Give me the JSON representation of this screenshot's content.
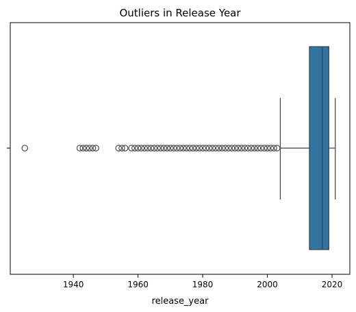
{
  "chart_data": {
    "type": "boxplot",
    "orientation": "horizontal",
    "title": "Outliers in Release Year",
    "xlabel": "release_year",
    "ylabel": "",
    "xlim": [
      1920.5,
      2025.5
    ],
    "x_ticks": [
      1940,
      1960,
      1980,
      2000,
      2020
    ],
    "x_tick_labels": [
      "1940",
      "1960",
      "1980",
      "2000",
      "2020"
    ],
    "grid": false,
    "legend": "none",
    "box": {
      "whisker_low": 2004,
      "q1": 2013,
      "median": 2017,
      "q3": 2019,
      "whisker_high": 2021
    },
    "outliers": [
      1925,
      1942,
      1943,
      1944,
      1945,
      1946,
      1947,
      1954,
      1955,
      1956,
      1958,
      1959,
      1960,
      1961,
      1962,
      1963,
      1964,
      1965,
      1966,
      1967,
      1968,
      1969,
      1970,
      1971,
      1972,
      1973,
      1974,
      1975,
      1976,
      1977,
      1978,
      1979,
      1980,
      1981,
      1982,
      1983,
      1984,
      1985,
      1986,
      1987,
      1988,
      1989,
      1990,
      1991,
      1992,
      1993,
      1994,
      1995,
      1996,
      1997,
      1998,
      1999,
      2000,
      2001,
      2002,
      2003
    ],
    "colors": {
      "box_fill": "#3274a1",
      "line": "#3f3f3f",
      "axis": "#000000"
    }
  }
}
